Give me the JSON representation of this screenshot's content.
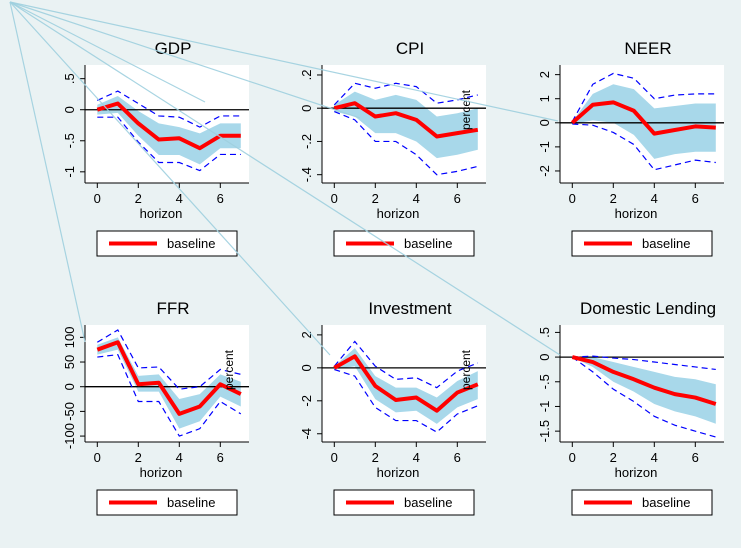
{
  "figure": {
    "background": "#eaf2f3"
  },
  "chart_data": [
    {
      "type": "line",
      "title": "GDP",
      "xlabel": "horizon",
      "ylabel": "",
      "x": [
        0,
        1,
        2,
        3,
        4,
        5,
        6,
        7
      ],
      "xticks": [
        0,
        2,
        4,
        6
      ],
      "xtick_labels": [
        "0",
        "2",
        "4",
        "6"
      ],
      "xlim": [
        -0.6,
        7.4
      ],
      "yticks": [
        0.5,
        0,
        -0.5,
        -1
      ],
      "ytick_labels": [
        ".5",
        "0",
        "-.5",
        "-1"
      ],
      "ylim": [
        -1.18,
        0.72
      ],
      "zero_line": true,
      "legend": {
        "entries": [
          "baseline"
        ],
        "position": "bottom"
      },
      "series": [
        {
          "name": "baseline",
          "role": "estimate",
          "color": "#ff0000",
          "values": [
            0,
            0.1,
            -0.22,
            -0.48,
            -0.46,
            -0.62,
            -0.42,
            -0.42
          ]
        },
        {
          "role": "band_upper",
          "color": "#a8d8ea",
          "values": [
            0.08,
            0.22,
            -0.02,
            -0.22,
            -0.28,
            -0.38,
            -0.22,
            -0.22
          ]
        },
        {
          "role": "band_lower",
          "color": "#a8d8ea",
          "values": [
            -0.08,
            -0.05,
            -0.42,
            -0.73,
            -0.73,
            -0.88,
            -0.62,
            -0.62
          ]
        },
        {
          "role": "ci_upper",
          "color": "#0000ff",
          "values": [
            0.15,
            0.3,
            0.1,
            -0.1,
            -0.12,
            -0.28,
            -0.1,
            -0.1
          ]
        },
        {
          "role": "ci_lower",
          "color": "#0000ff",
          "values": [
            -0.12,
            -0.12,
            -0.52,
            -0.85,
            -0.85,
            -0.98,
            -0.72,
            -0.72
          ]
        }
      ]
    },
    {
      "type": "line",
      "title": "CPI",
      "xlabel": "horizon",
      "ylabel": "percent",
      "x": [
        0,
        1,
        2,
        3,
        4,
        5,
        6,
        7
      ],
      "xticks": [
        0,
        2,
        4,
        6
      ],
      "xtick_labels": [
        "0",
        "2",
        "4",
        "6"
      ],
      "xlim": [
        -0.6,
        7.4
      ],
      "yticks": [
        0.2,
        0,
        -0.2,
        -0.4
      ],
      "ytick_labels": [
        ".2",
        "0",
        "-.2",
        "-.4"
      ],
      "ylim": [
        -0.45,
        0.26
      ],
      "zero_line": true,
      "legend": {
        "entries": [
          "baseline"
        ],
        "position": "bottom"
      },
      "series": [
        {
          "name": "baseline",
          "role": "estimate",
          "color": "#ff0000",
          "values": [
            0,
            0.03,
            -0.05,
            -0.03,
            -0.07,
            -0.17,
            -0.15,
            -0.13
          ]
        },
        {
          "role": "band_upper",
          "color": "#a8d8ea",
          "values": [
            0.02,
            0.1,
            0.05,
            0.08,
            0.05,
            -0.05,
            -0.03,
            0
          ]
        },
        {
          "role": "band_lower",
          "color": "#a8d8ea",
          "values": [
            -0.02,
            -0.05,
            -0.15,
            -0.15,
            -0.2,
            -0.3,
            -0.28,
            -0.25
          ]
        },
        {
          "role": "ci_upper",
          "color": "#0000ff",
          "values": [
            0.02,
            0.15,
            0.12,
            0.15,
            0.13,
            0.03,
            0.05,
            0.08
          ]
        },
        {
          "role": "ci_lower",
          "color": "#0000ff",
          "values": [
            -0.02,
            -0.07,
            -0.2,
            -0.2,
            -0.28,
            -0.4,
            -0.38,
            -0.35
          ]
        }
      ]
    },
    {
      "type": "line",
      "title": "NEER",
      "xlabel": "horizon",
      "ylabel": "",
      "x": [
        0,
        1,
        2,
        3,
        4,
        5,
        6,
        7
      ],
      "xticks": [
        0,
        2,
        4,
        6
      ],
      "xtick_labels": [
        "0",
        "2",
        "4",
        "6"
      ],
      "xlim": [
        -0.6,
        7.4
      ],
      "yticks": [
        2,
        1,
        0,
        -1,
        -2
      ],
      "ytick_labels": [
        "2",
        "1",
        "0",
        "-1",
        "-2"
      ],
      "ylim": [
        -2.5,
        2.4
      ],
      "zero_line": true,
      "legend": {
        "entries": [
          "baseline"
        ],
        "position": "bottom"
      },
      "series": [
        {
          "name": "baseline",
          "role": "estimate",
          "color": "#ff0000",
          "values": [
            0,
            0.75,
            0.85,
            0.5,
            -0.45,
            -0.3,
            -0.15,
            -0.2
          ]
        },
        {
          "role": "band_upper",
          "color": "#a8d8ea",
          "values": [
            0.05,
            1.2,
            1.6,
            1.4,
            0.6,
            0.7,
            0.8,
            0.8
          ]
        },
        {
          "role": "band_lower",
          "color": "#a8d8ea",
          "values": [
            -0.05,
            0.1,
            0.0,
            -0.5,
            -1.5,
            -1.3,
            -1.2,
            -1.2
          ]
        },
        {
          "role": "ci_upper",
          "color": "#0000ff",
          "values": [
            0.05,
            1.6,
            2.05,
            1.85,
            1.0,
            1.15,
            1.2,
            1.2
          ]
        },
        {
          "role": "ci_lower",
          "color": "#0000ff",
          "values": [
            -0.05,
            -0.1,
            -0.4,
            -0.9,
            -1.95,
            -1.75,
            -1.55,
            -1.65
          ]
        }
      ]
    },
    {
      "type": "line",
      "title": "FFR",
      "xlabel": "horizon",
      "ylabel": "percent",
      "x": [
        0,
        1,
        2,
        3,
        4,
        5,
        6,
        7
      ],
      "xticks": [
        0,
        2,
        4,
        6
      ],
      "xtick_labels": [
        "0",
        "2",
        "4",
        "6"
      ],
      "xlim": [
        -0.6,
        7.4
      ],
      "yticks": [
        100,
        50,
        0,
        -50,
        -100
      ],
      "ytick_labels": [
        "100",
        "50",
        "0",
        "-50",
        "-100"
      ],
      "ylim": [
        -112,
        125
      ],
      "zero_line": true,
      "legend": {
        "entries": [
          "baseline"
        ],
        "position": "bottom"
      },
      "series": [
        {
          "name": "baseline",
          "role": "estimate",
          "color": "#ff0000",
          "values": [
            75,
            90,
            5,
            8,
            -55,
            -40,
            5,
            -15
          ]
        },
        {
          "role": "band_upper",
          "color": "#a8d8ea",
          "values": [
            85,
            100,
            22,
            25,
            -25,
            -15,
            25,
            10
          ]
        },
        {
          "role": "band_lower",
          "color": "#a8d8ea",
          "values": [
            65,
            75,
            -10,
            -10,
            -85,
            -70,
            -20,
            -40
          ]
        },
        {
          "role": "ci_upper",
          "color": "#0000ff",
          "values": [
            90,
            115,
            38,
            40,
            -5,
            0,
            35,
            25
          ]
        },
        {
          "role": "ci_lower",
          "color": "#0000ff",
          "values": [
            60,
            65,
            -30,
            -30,
            -100,
            -85,
            -30,
            -55
          ]
        }
      ]
    },
    {
      "type": "line",
      "title": "Investment",
      "xlabel": "horizon",
      "ylabel": "percent",
      "x": [
        0,
        1,
        2,
        3,
        4,
        5,
        6,
        7
      ],
      "xticks": [
        0,
        2,
        4,
        6
      ],
      "xtick_labels": [
        "0",
        "2",
        "4",
        "6"
      ],
      "xlim": [
        -0.6,
        7.4
      ],
      "yticks": [
        2,
        0,
        -2,
        -4
      ],
      "ytick_labels": [
        "2",
        "0",
        "-2",
        "-4"
      ],
      "ylim": [
        -4.5,
        2.6
      ],
      "zero_line": true,
      "legend": {
        "entries": [
          "baseline"
        ],
        "position": "bottom"
      },
      "series": [
        {
          "name": "baseline",
          "role": "estimate",
          "color": "#ff0000",
          "values": [
            0,
            0.7,
            -1.1,
            -1.95,
            -1.8,
            -2.6,
            -1.5,
            -1.0
          ]
        },
        {
          "role": "band_upper",
          "color": "#a8d8ea",
          "values": [
            0.1,
            1.2,
            -0.5,
            -1.2,
            -1.2,
            -1.8,
            -0.8,
            -0.2
          ]
        },
        {
          "role": "band_lower",
          "color": "#a8d8ea",
          "values": [
            -0.1,
            0.1,
            -1.9,
            -2.7,
            -2.6,
            -3.4,
            -2.4,
            -1.9
          ]
        },
        {
          "role": "ci_upper",
          "color": "#0000ff",
          "values": [
            0.1,
            1.6,
            0.1,
            -0.7,
            -0.6,
            -1.2,
            -0.2,
            0.3
          ]
        },
        {
          "role": "ci_lower",
          "color": "#0000ff",
          "values": [
            -0.1,
            -0.5,
            -2.4,
            -3.2,
            -3.2,
            -3.9,
            -2.8,
            -2.3
          ]
        }
      ]
    },
    {
      "type": "line",
      "title": "Domestic Lending",
      "xlabel": "horizon",
      "ylabel": "",
      "x": [
        0,
        1,
        2,
        3,
        4,
        5,
        6,
        7
      ],
      "xticks": [
        0,
        2,
        4,
        6
      ],
      "xtick_labels": [
        "0",
        "2",
        "4",
        "6"
      ],
      "xlim": [
        -0.6,
        7.4
      ],
      "yticks": [
        0.5,
        0,
        -0.5,
        -1,
        -1.5
      ],
      "ytick_labels": [
        ".5",
        "0",
        "-.5",
        "-1",
        "-1.5"
      ],
      "ylim": [
        -1.72,
        0.65
      ],
      "zero_line": true,
      "legend": {
        "entries": [
          "baseline"
        ],
        "position": "bottom"
      },
      "series": [
        {
          "name": "baseline",
          "role": "estimate",
          "color": "#ff0000",
          "values": [
            0,
            -0.1,
            -0.3,
            -0.45,
            -0.62,
            -0.75,
            -0.82,
            -0.95
          ]
        },
        {
          "role": "band_upper",
          "color": "#a8d8ea",
          "values": [
            0,
            0,
            -0.1,
            -0.2,
            -0.3,
            -0.4,
            -0.45,
            -0.55
          ]
        },
        {
          "role": "band_lower",
          "color": "#a8d8ea",
          "values": [
            0,
            -0.2,
            -0.5,
            -0.7,
            -0.95,
            -1.1,
            -1.2,
            -1.35
          ]
        },
        {
          "role": "ci_upper",
          "color": "#0000ff",
          "values": [
            0,
            0.02,
            -0.02,
            -0.05,
            -0.1,
            -0.15,
            -0.2,
            -0.25
          ]
        },
        {
          "role": "ci_lower",
          "color": "#0000ff",
          "values": [
            0,
            -0.3,
            -0.65,
            -0.9,
            -1.2,
            -1.38,
            -1.5,
            -1.62
          ]
        }
      ]
    }
  ]
}
